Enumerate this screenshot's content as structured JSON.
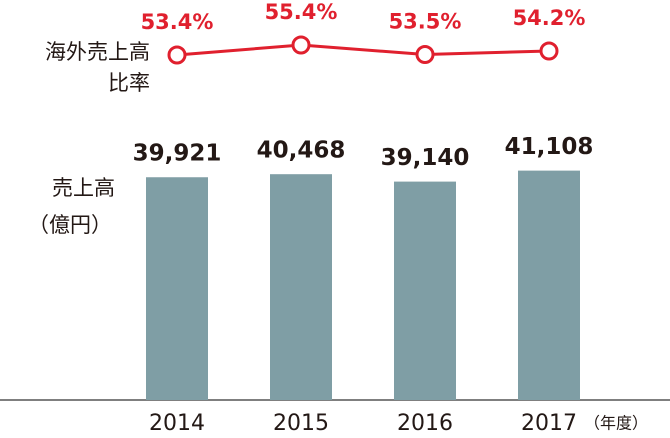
{
  "chart_data": [
    {
      "type": "bar",
      "y_label": [
        "売上高",
        "（億円）"
      ],
      "categories": [
        "2014",
        "2015",
        "2016",
        "2017"
      ],
      "x_unit": "（年度）",
      "values": [
        39921,
        40468,
        39140,
        41108
      ],
      "value_labels": [
        "39,921",
        "40,468",
        "39,140",
        "41,108"
      ],
      "color": "#7f9ea5",
      "ylim": [
        0,
        50000
      ]
    },
    {
      "type": "line",
      "y_label": [
        "海外売上高",
        "比率"
      ],
      "values": [
        53.4,
        55.4,
        53.5,
        54.2
      ],
      "value_labels": [
        "53.4%",
        "55.4%",
        "53.5%",
        "54.2%"
      ],
      "color": "#e0202e",
      "ylim": [
        50,
        60
      ]
    }
  ]
}
